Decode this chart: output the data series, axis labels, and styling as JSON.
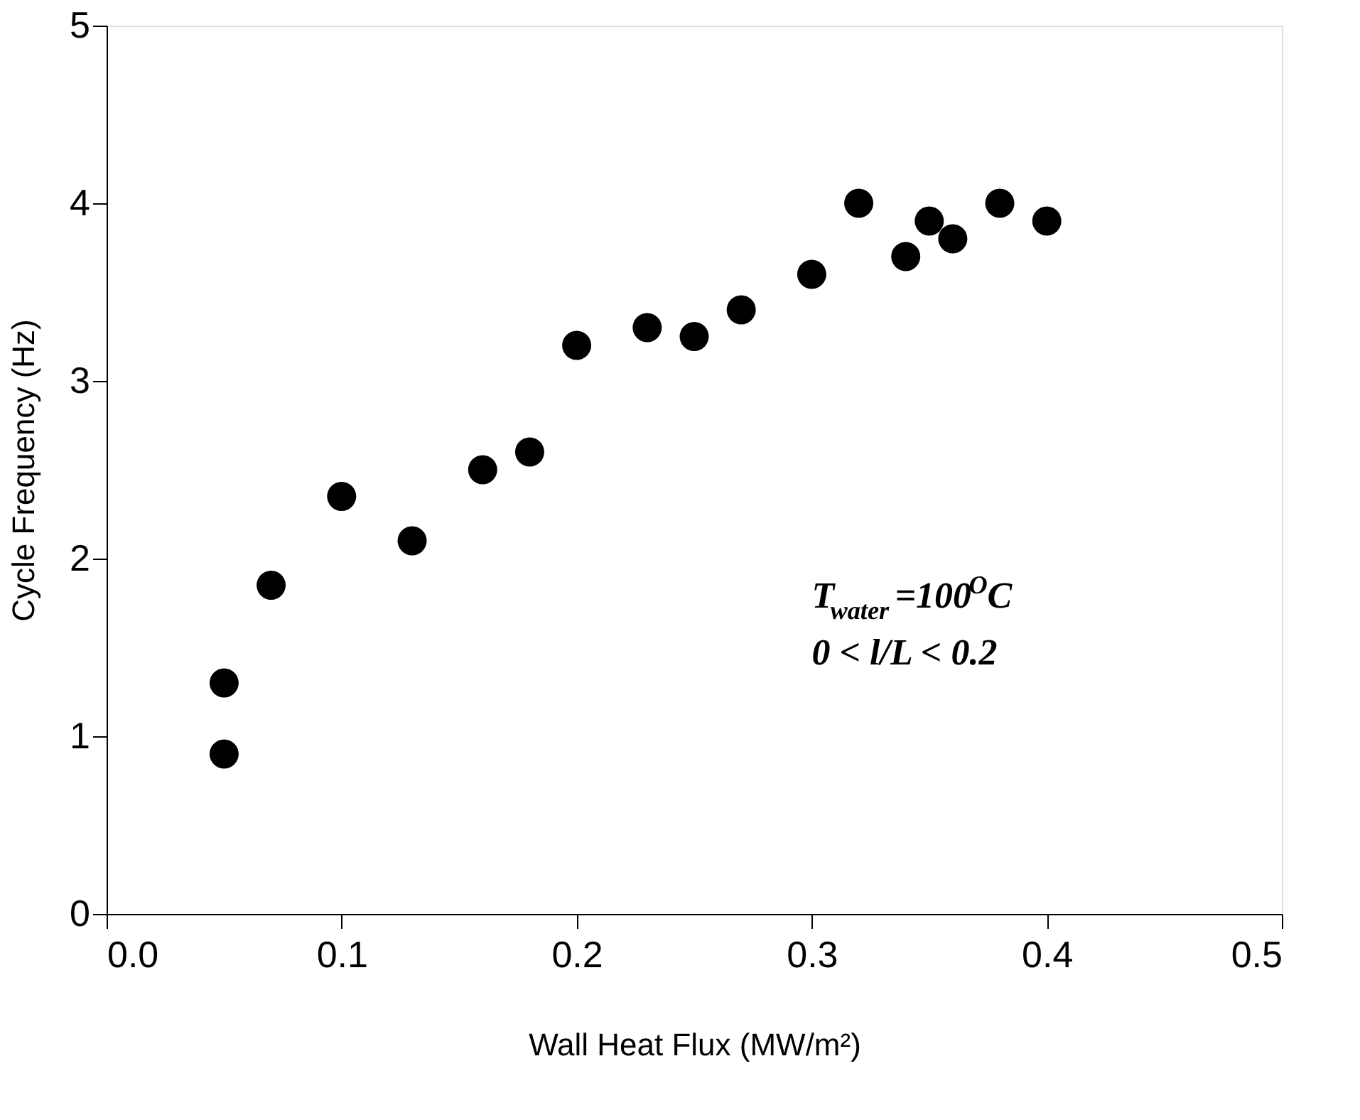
{
  "chart_data": {
    "type": "scatter",
    "xlabel": "Wall Heat Flux (MW/m²)",
    "ylabel": "Cycle Frequency (Hz)",
    "x": [
      0.05,
      0.05,
      0.07,
      0.1,
      0.13,
      0.16,
      0.18,
      0.2,
      0.23,
      0.25,
      0.27,
      0.3,
      0.32,
      0.34,
      0.35,
      0.36,
      0.38,
      0.4
    ],
    "values": [
      0.9,
      1.3,
      1.85,
      2.35,
      2.1,
      2.5,
      2.6,
      3.2,
      3.3,
      3.25,
      3.4,
      3.6,
      4.0,
      3.7,
      3.9,
      3.8,
      4.0,
      3.9
    ],
    "color": "#000000",
    "marker": "circle",
    "grid": false,
    "xlim": [
      0,
      0.5
    ],
    "ylim": [
      0,
      5
    ],
    "xticks": [
      {
        "value": 0,
        "label": "0.0"
      },
      0.1,
      0.2,
      0.3,
      0.4,
      0.5
    ],
    "yticks": [
      0,
      1,
      2,
      3,
      4,
      5
    ],
    "annotations": [
      "T$_{water}$=100$^{O}$C",
      "0 < l/L < 0.2"
    ]
  }
}
